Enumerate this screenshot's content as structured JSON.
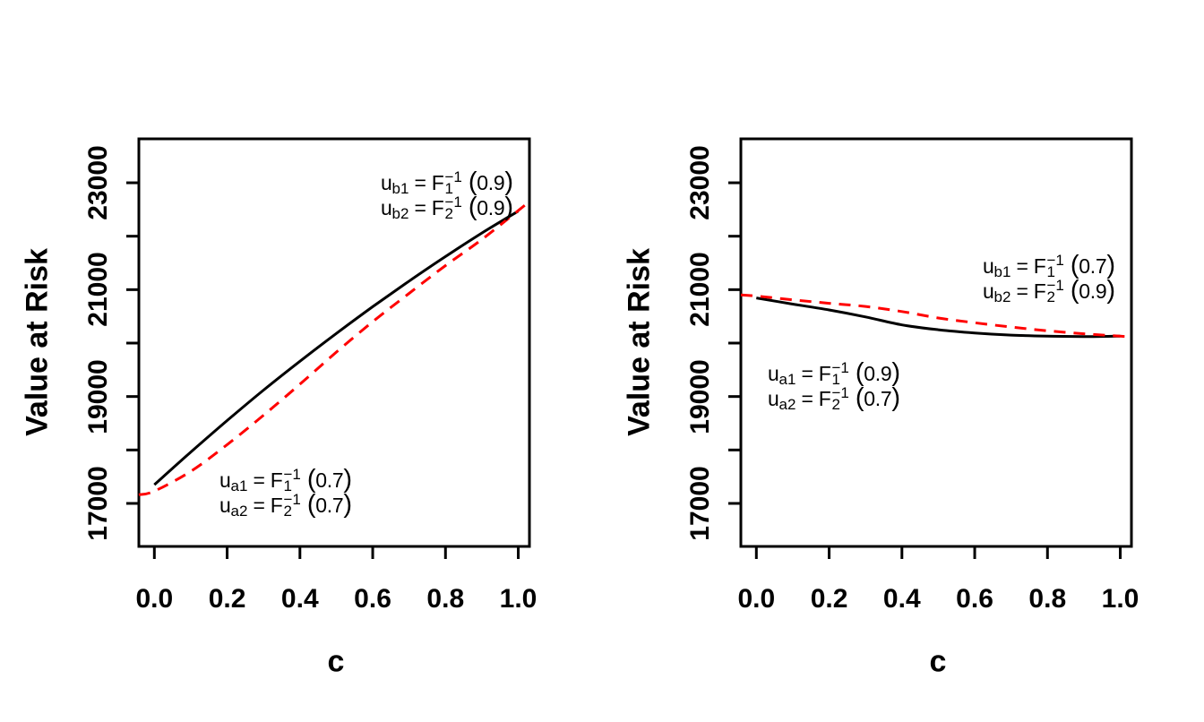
{
  "figure": {
    "background": "#ffffff",
    "line_color_solid": "#000000",
    "line_color_dashed": "#ff0000"
  },
  "chart_data": [
    {
      "id": "left-plot",
      "type": "line",
      "title": "",
      "xlabel": "c",
      "ylabel": "Value at Risk",
      "xlim": [
        -0.0426,
        1.0307
      ],
      "ylim": [
        16195,
        23822
      ],
      "grid": false,
      "legend": "none",
      "xticks": {
        "values": [
          0.0,
          0.2,
          0.4,
          0.6,
          0.8,
          1.0
        ],
        "labels": [
          "0.0",
          "0.2",
          "0.4",
          "0.6",
          "0.8",
          "1.0"
        ]
      },
      "yticks": {
        "values": [
          17000,
          18000,
          19000,
          20000,
          21000,
          22000,
          23000
        ],
        "labels": [
          "17000",
          "",
          "19000",
          "",
          "21000",
          "",
          "23000"
        ]
      },
      "series": [
        {
          "name": "var-solid-black",
          "color": "#000000",
          "dash": "solid",
          "line_width": 3,
          "x": [
            0,
            0.1,
            0.2,
            0.3,
            0.4,
            0.5,
            0.6,
            0.7,
            0.8,
            0.9,
            1.0
          ],
          "values": [
            17350,
            17960,
            18550,
            19120,
            19660,
            20180,
            20680,
            21160,
            21620,
            22060,
            22470
          ]
        },
        {
          "name": "var-dashed-red",
          "color": "#ff0000",
          "dash": "dashed",
          "line_width": 3,
          "x": [
            -0.0426,
            0,
            0.1,
            0.2,
            0.3,
            0.4,
            0.5,
            0.6,
            0.7,
            0.8,
            0.9,
            1.0,
            1.0307
          ],
          "values": [
            17160,
            17230,
            17600,
            18100,
            18650,
            19230,
            19830,
            20400,
            20930,
            21450,
            21940,
            22480,
            22650
          ]
        }
      ],
      "annotations": [
        {
          "name": "upper-quantile-label",
          "lines": [
            {
              "lhs_base": "u",
              "lhs_sub": "b1",
              "eq": "=",
              "rhs_base": "F",
              "rhs_sup": "−1",
              "rhs_sub": "1",
              "open": "(",
              "value": "0.9",
              "close": ")"
            },
            {
              "lhs_base": "u",
              "lhs_sub": "b2",
              "eq": "=",
              "rhs_base": "F",
              "rhs_sup": "−1",
              "rhs_sub": "2",
              "open": "(",
              "value": "0.9",
              "close": ")"
            }
          ]
        },
        {
          "name": "lower-quantile-label",
          "lines": [
            {
              "lhs_base": "u",
              "lhs_sub": "a1",
              "eq": "=",
              "rhs_base": "F",
              "rhs_sup": "−1",
              "rhs_sub": "1",
              "open": "(",
              "value": "0.7",
              "close": ")"
            },
            {
              "lhs_base": "u",
              "lhs_sub": "a2",
              "eq": "=",
              "rhs_base": "F",
              "rhs_sup": "−1",
              "rhs_sub": "2",
              "open": "(",
              "value": "0.7",
              "close": ")"
            }
          ]
        }
      ]
    },
    {
      "id": "right-plot",
      "type": "line",
      "title": "",
      "xlabel": "c",
      "ylabel": "Value at Risk",
      "xlim": [
        -0.0426,
        1.0307
      ],
      "ylim": [
        16195,
        23822
      ],
      "grid": false,
      "legend": "none",
      "xticks": {
        "values": [
          0.0,
          0.2,
          0.4,
          0.6,
          0.8,
          1.0
        ],
        "labels": [
          "0.0",
          "0.2",
          "0.4",
          "0.6",
          "0.8",
          "1.0"
        ]
      },
      "yticks": {
        "values": [
          17000,
          18000,
          19000,
          20000,
          21000,
          22000,
          23000
        ],
        "labels": [
          "17000",
          "",
          "19000",
          "",
          "21000",
          "",
          "23000"
        ]
      },
      "series": [
        {
          "name": "var-solid-black",
          "color": "#000000",
          "dash": "solid",
          "line_width": 3,
          "x": [
            0,
            0.1,
            0.2,
            0.3,
            0.4,
            0.5,
            0.6,
            0.7,
            0.8,
            0.9,
            1.0
          ],
          "values": [
            20845,
            20730,
            20620,
            20490,
            20340,
            20250,
            20190,
            20150,
            20130,
            20122,
            20130
          ]
        },
        {
          "name": "var-dashed-red",
          "color": "#ff0000",
          "dash": "dashed",
          "line_width": 3,
          "x": [
            -0.0426,
            0,
            0.1,
            0.2,
            0.3,
            0.4,
            0.5,
            0.6,
            0.7,
            0.8,
            0.9,
            1.0,
            1.0307
          ],
          "values": [
            20902,
            20880,
            20810,
            20745,
            20685,
            20590,
            20470,
            20380,
            20300,
            20230,
            20175,
            20130,
            20117
          ]
        }
      ],
      "annotations": [
        {
          "name": "upper-quantile-label",
          "lines": [
            {
              "lhs_base": "u",
              "lhs_sub": "b1",
              "eq": "=",
              "rhs_base": "F",
              "rhs_sup": "−1",
              "rhs_sub": "1",
              "open": "(",
              "value": "0.7",
              "close": ")"
            },
            {
              "lhs_base": "u",
              "lhs_sub": "b2",
              "eq": "=",
              "rhs_base": "F",
              "rhs_sup": "−1",
              "rhs_sub": "2",
              "open": "(",
              "value": "0.9",
              "close": ")"
            }
          ]
        },
        {
          "name": "lower-quantile-label",
          "lines": [
            {
              "lhs_base": "u",
              "lhs_sub": "a1",
              "eq": "=",
              "rhs_base": "F",
              "rhs_sup": "−1",
              "rhs_sub": "1",
              "open": "(",
              "value": "0.9",
              "close": ")"
            },
            {
              "lhs_base": "u",
              "lhs_sub": "a2",
              "eq": "=",
              "rhs_base": "F",
              "rhs_sup": "−1",
              "rhs_sub": "2",
              "open": "(",
              "value": "0.7",
              "close": ")"
            }
          ]
        }
      ]
    }
  ]
}
